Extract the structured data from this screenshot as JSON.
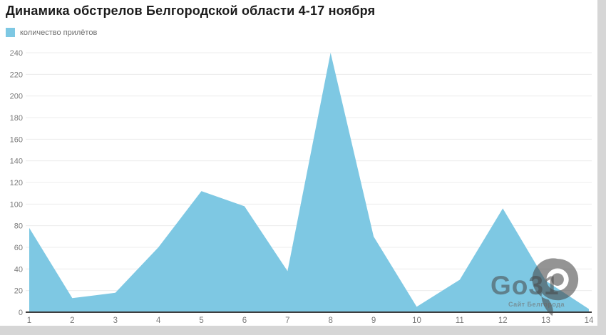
{
  "page": {
    "title": "Динамика обстрелов Белгородской области 4-17 ноября"
  },
  "legend": {
    "label": "количество прилётов",
    "swatch_color": "#7ec8e3"
  },
  "watermark": {
    "brand": "Go31",
    "subtitle": "Сайт Белгорода"
  },
  "chart_data": {
    "type": "area",
    "title": "Динамика обстрелов Белгородской области 4-17 ноября",
    "xlabel": "",
    "ylabel": "",
    "categories": [
      "1",
      "2",
      "3",
      "4",
      "5",
      "6",
      "7",
      "8",
      "9",
      "10",
      "11",
      "12",
      "13",
      "14"
    ],
    "series": [
      {
        "name": "количество прилётов",
        "values": [
          78,
          13,
          18,
          60,
          112,
          98,
          38,
          240,
          70,
          5,
          30,
          96,
          29,
          3
        ]
      }
    ],
    "ylim": [
      0,
      240
    ],
    "ytick_step": 20,
    "grid": "horizontal",
    "legend_position": "top-left",
    "colors": {
      "area_fill": "#7ec8e3",
      "gridline": "#ececec",
      "axis_line": "#3f3f3f",
      "tick_label": "#7a7a7a"
    }
  }
}
